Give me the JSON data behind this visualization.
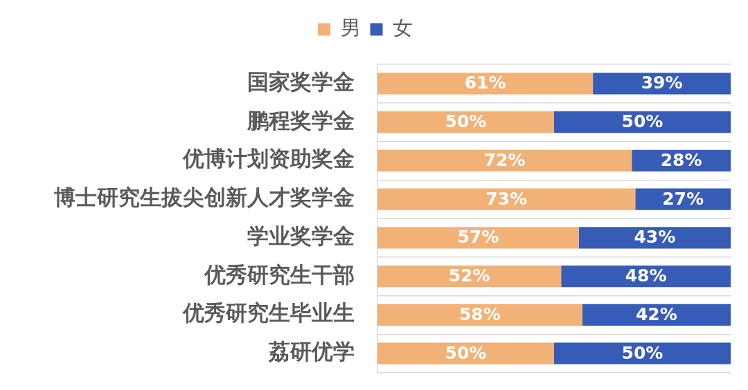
{
  "chart_data": {
    "type": "bar",
    "orientation": "horizontal",
    "stacked": true,
    "categories": [
      "国家奖学金",
      "鹏程奖学金",
      "优博计划资助奖金",
      "博士研究生拔尖创新人才奖学金",
      "学业奖学金",
      "优秀研究生干部",
      "优秀研究生毕业生",
      "荔研优学"
    ],
    "series": [
      {
        "name": "男",
        "color": "#f2b177",
        "values": [
          61,
          50,
          72,
          73,
          57,
          52,
          58,
          50
        ],
        "value_labels": [
          "61%",
          "50%",
          "72%",
          "73%",
          "57%",
          "52%",
          "58%",
          "50%"
        ]
      },
      {
        "name": "女",
        "color": "#375cb8",
        "values": [
          39,
          50,
          28,
          27,
          43,
          48,
          42,
          50
        ],
        "value_labels": [
          "39%",
          "50%",
          "28%",
          "27%",
          "43%",
          "48%",
          "42%",
          "50%"
        ]
      }
    ],
    "xlim": [
      0,
      100
    ],
    "grid": "y",
    "legend": "top",
    "tick_labels": "y"
  }
}
